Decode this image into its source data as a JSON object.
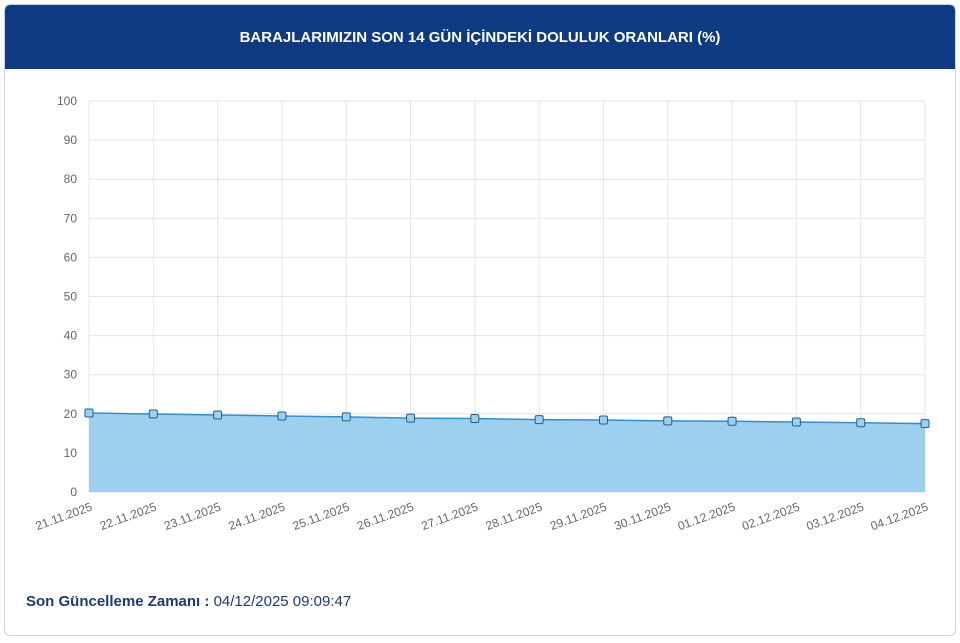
{
  "header": {
    "title": "BARAJLARIMIZIN SON 14 GÜN İÇİNDEKİ DOLULUK ORANLARI (%)"
  },
  "chart_data": {
    "type": "area",
    "categories": [
      "21.11.2025",
      "22.11.2025",
      "23.11.2025",
      "24.11.2025",
      "25.11.2025",
      "26.11.2025",
      "27.11.2025",
      "28.11.2025",
      "29.11.2025",
      "30.11.2025",
      "01.12.2025",
      "02.12.2025",
      "03.12.2025",
      "04.12.2025"
    ],
    "values": [
      20.2,
      19.95,
      19.7,
      19.45,
      19.2,
      18.9,
      18.8,
      18.5,
      18.4,
      18.2,
      18.1,
      17.9,
      17.7,
      17.5
    ],
    "color": "#2f8fd0",
    "fill": "#9dd0ee",
    "ylim": [
      0,
      100
    ],
    "yticks": [
      0,
      10,
      20,
      30,
      40,
      50,
      60,
      70,
      80,
      90,
      100
    ],
    "grid": true
  },
  "footer": {
    "label": "Son Güncelleme Zamanı :",
    "value": "04/12/2025 09:09:47"
  }
}
